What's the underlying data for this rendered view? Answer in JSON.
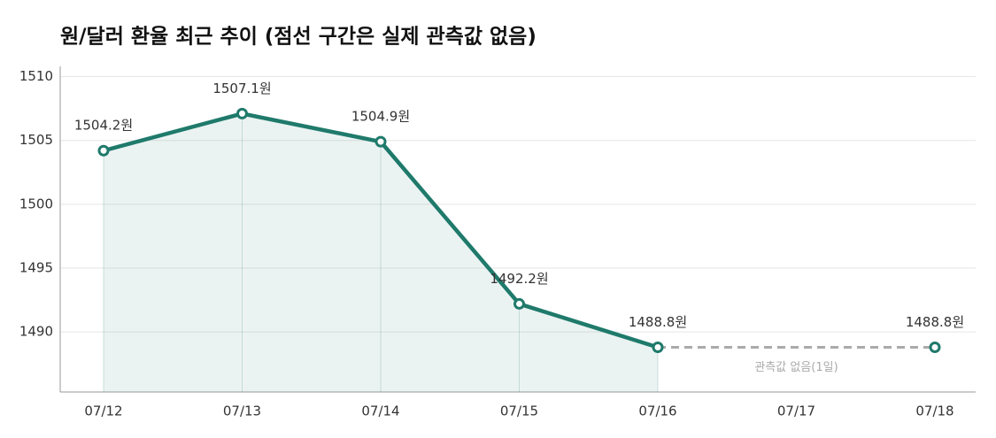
{
  "chart_data": {
    "type": "line",
    "title": "원/달러 환율 최근 추이  (점선 구간은 실제 관측값 없음)",
    "categories": [
      "07/12",
      "07/13",
      "07/14",
      "07/15",
      "07/16",
      "07/17",
      "07/18"
    ],
    "series": [
      {
        "color": "#1f7a6b",
        "values": [
          1504.2,
          1507.1,
          1504.9,
          1492.2,
          1488.8,
          null,
          1488.8
        ],
        "value_labels": [
          "1504.2원",
          "1507.1원",
          "1504.9원",
          "1492.2원",
          "1488.8원",
          null,
          "1488.8원"
        ]
      }
    ],
    "gap_color": "#aaaaaa",
    "annotation": "관측값 없음(1일)",
    "ylim": [
      1485.3,
      1510.8
    ],
    "yticks": [
      1490,
      1495,
      1500,
      1505,
      1510
    ],
    "grid": true
  }
}
